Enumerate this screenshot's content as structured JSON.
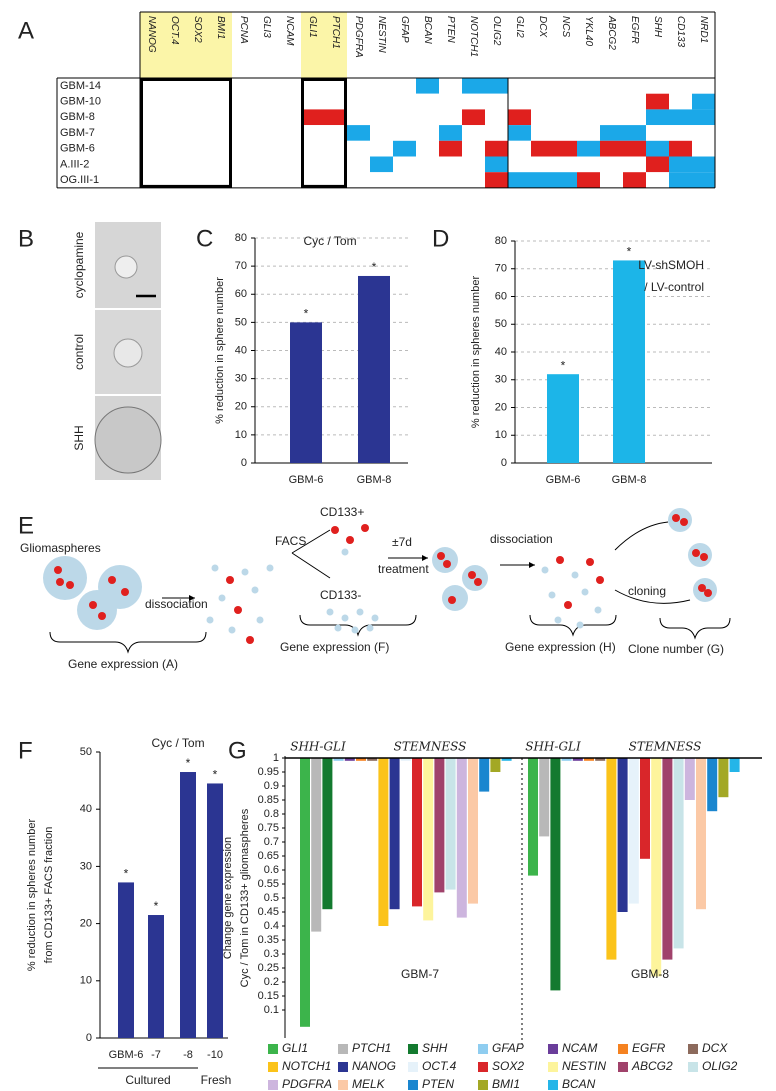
{
  "panel_letters": [
    "A",
    "B",
    "C",
    "D",
    "E",
    "F",
    "G"
  ],
  "panel_a": {
    "columns": [
      "NANOG",
      "OCT.4",
      "SOX2",
      "BMI1",
      "PCNA",
      "GLI3",
      "NCAM",
      "GLI1",
      "PTCH1",
      "PDGFRA",
      "NESTIN",
      "GFAP",
      "BCAN",
      "PTEN",
      "NOTCH1",
      "OLIG2",
      "GLI2",
      "DCX",
      "NCS",
      "YKL40",
      "ABCG2",
      "EGFR",
      "SHH",
      "CD133",
      "NRD1"
    ],
    "rows": [
      "GBM-14",
      "GBM-10",
      "GBM-8",
      "GBM-7",
      "GBM-6",
      "A.III-2",
      "OG.III-1"
    ],
    "up_color": "#e0201e",
    "down_color": "#1ba8e8",
    "cells": [
      [
        0,
        0,
        0,
        0,
        0,
        0,
        0,
        0,
        0,
        0,
        0,
        0,
        -1,
        0,
        -1,
        -1,
        0,
        0,
        0,
        0,
        0,
        0,
        0,
        0,
        0
      ],
      [
        0,
        0,
        0,
        0,
        0,
        0,
        0,
        0,
        0,
        0,
        0,
        0,
        0,
        0,
        0,
        0,
        0,
        0,
        0,
        0,
        0,
        0,
        1,
        0,
        -1
      ],
      [
        0,
        0,
        0,
        0,
        0,
        0,
        0,
        1,
        1,
        0,
        0,
        0,
        0,
        0,
        1,
        0,
        1,
        0,
        0,
        0,
        0,
        0,
        -1,
        -1,
        -1
      ],
      [
        0,
        0,
        0,
        0,
        0,
        0,
        0,
        0,
        0,
        -1,
        0,
        0,
        0,
        -1,
        0,
        0,
        -1,
        0,
        0,
        0,
        -1,
        -1,
        0,
        0,
        0
      ],
      [
        0,
        0,
        0,
        0,
        0,
        0,
        0,
        0,
        0,
        0,
        0,
        -1,
        0,
        1,
        0,
        1,
        0,
        1,
        1,
        -1,
        1,
        1,
        -1,
        1,
        0
      ],
      [
        0,
        0,
        0,
        0,
        0,
        0,
        0,
        0,
        0,
        0,
        -1,
        0,
        0,
        0,
        0,
        -1,
        0,
        0,
        0,
        0,
        0,
        0,
        1,
        -1,
        -1
      ],
      [
        0,
        0,
        0,
        0,
        0,
        0,
        0,
        0,
        0,
        0,
        0,
        0,
        0,
        0,
        0,
        1,
        -1,
        -1,
        -1,
        1,
        0,
        1,
        0,
        -1,
        -1
      ]
    ]
  },
  "panel_b": {
    "labels": [
      "cyclopamine",
      "control",
      "SHH"
    ]
  },
  "panel_e": {
    "labels": [
      "Gliomaspheres",
      "dissociation",
      "FACS",
      "CD133+",
      "CD133-",
      "±7d",
      "treatment",
      "dissociation",
      "cloning",
      "Gene expression (A)",
      "Gene expression (F)",
      "Gene expression (H)",
      "Clone number (G)"
    ]
  },
  "chart_data": [
    {
      "type": "bar",
      "title": "Cyc / Tom",
      "y_label": "% reduction in sphere number",
      "categories": [
        "GBM-6",
        "GBM-8"
      ],
      "values": [
        50,
        66.5
      ],
      "annotations": [
        "*",
        "*"
      ],
      "color": "#2b3592",
      "ylim": [
        0,
        80
      ],
      "yticks": [
        0,
        10,
        20,
        30,
        40,
        50,
        60,
        70,
        80
      ],
      "grid": true
    },
    {
      "type": "bar",
      "title": "LV-shSMOH",
      "subtitle": "/ LV-control",
      "y_label": "% reduction in spheres number",
      "categories": [
        "GBM-6",
        "GBM-8"
      ],
      "values": [
        32,
        73
      ],
      "annotations": [
        "*",
        "*"
      ],
      "color": "#1cb5e8",
      "ylim": [
        0,
        80
      ],
      "yticks": [
        0,
        10,
        20,
        30,
        40,
        50,
        60,
        70,
        80
      ],
      "grid": true
    },
    {
      "type": "bar",
      "title": "Cyc / Tom",
      "y_label": [
        "% reduction in spheres number",
        "from CD133+ FACS fraction"
      ],
      "categories": [
        "GBM-6",
        "-7",
        "-8",
        "-10"
      ],
      "values": [
        27.2,
        21.5,
        46.5,
        44.5
      ],
      "annotations": [
        "*",
        "*",
        "*",
        "*"
      ],
      "groups": [
        "Cultured",
        "Fresh"
      ],
      "color": "#2b3592",
      "ylim": [
        0,
        50
      ],
      "yticks": [
        0,
        10,
        20,
        30,
        40,
        50
      ],
      "grid": false
    },
    {
      "type": "hanging-bar",
      "y_label": [
        "Change gene expression",
        "Cyc / Tom in CD133+ gliomaspheres"
      ],
      "categories": [
        "GBM-7",
        "GBM-8"
      ],
      "section_labels": [
        "SHH-GLI",
        "STEMNESS",
        "SHH-GLI",
        "STEMNESS"
      ],
      "baseline": 1,
      "ylim": [
        0,
        1
      ],
      "yticks": [
        0.1,
        0.15,
        0.2,
        0.25,
        0.3,
        0.35,
        0.4,
        0.45,
        0.5,
        0.55,
        0.6,
        0.65,
        0.7,
        0.75,
        0.8,
        0.85,
        0.9,
        0.95,
        1
      ],
      "series": [
        {
          "name": "GLI1",
          "color": "#3cb44b",
          "values": [
            0.04,
            0.58
          ]
        },
        {
          "name": "PTCH1",
          "color": "#b8b8b8",
          "values": [
            0.38,
            0.72
          ]
        },
        {
          "name": "SHH",
          "color": "#137a2f",
          "values": [
            0.46,
            0.17
          ]
        },
        {
          "name": "GFAP",
          "color": "#8fcdf0",
          "values": [
            0.99,
            0.99
          ]
        },
        {
          "name": "NCAM",
          "color": "#6a3d9a",
          "values": [
            0.99,
            0.99
          ]
        },
        {
          "name": "EGFR",
          "color": "#f58220",
          "values": [
            0.99,
            0.99
          ]
        },
        {
          "name": "DCX",
          "color": "#8c6a5c",
          "values": [
            0.99,
            0.99
          ]
        },
        {
          "name": "NOTCH1",
          "color": "#fbc31a",
          "values": [
            0.4,
            0.28
          ]
        },
        {
          "name": "NANOG",
          "color": "#2b3592",
          "values": [
            0.46,
            0.45
          ]
        },
        {
          "name": "OCT.4",
          "color": "#e6f2fa",
          "values": [
            0.99,
            0.48
          ]
        },
        {
          "name": "SOX2",
          "color": "#d9262a",
          "values": [
            0.47,
            0.64
          ]
        },
        {
          "name": "NESTIN",
          "color": "#fdf49c",
          "values": [
            0.42,
            0.22
          ]
        },
        {
          "name": "ABCG2",
          "color": "#a0426b",
          "values": [
            0.52,
            0.28
          ]
        },
        {
          "name": "OLIG2",
          "color": "#c8e4e8",
          "values": [
            0.53,
            0.32
          ]
        },
        {
          "name": "PDGFRA",
          "color": "#cdb5de",
          "values": [
            0.43,
            0.85
          ]
        },
        {
          "name": "MELK",
          "color": "#fbc9a6",
          "values": [
            0.48,
            0.46
          ]
        },
        {
          "name": "PTEN",
          "color": "#1a86cf",
          "values": [
            0.88,
            0.81
          ]
        },
        {
          "name": "BMI1",
          "color": "#a3a825",
          "values": [
            0.95,
            0.86
          ]
        },
        {
          "name": "BCAN",
          "color": "#25b5e8",
          "values": [
            0.99,
            0.95
          ]
        }
      ]
    }
  ]
}
